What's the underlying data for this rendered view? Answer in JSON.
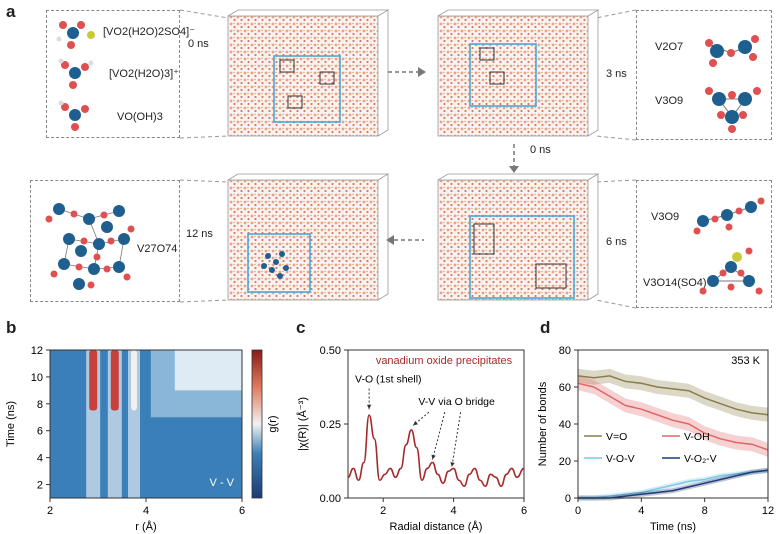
{
  "panels": {
    "a": "a",
    "b": "b",
    "c": "c",
    "d": "d"
  },
  "panel_a": {
    "times": {
      "t0": "0 ns",
      "t3": "3 ns",
      "t0b": "0 ns",
      "t6": "6 ns",
      "t12": "12 ns"
    },
    "species_initial": [
      "[VO2(H2O)2SO4]⁻",
      "[VO2(H2O)3]⁺",
      "VO(OH)3"
    ],
    "species_3ns": [
      "V2O7",
      "V3O9"
    ],
    "species_6ns": [
      "V3O9",
      "V3O14(SO4)"
    ],
    "species_12ns": [
      "V27O74"
    ]
  },
  "chart_data": [
    {
      "type": "heatmap",
      "panel": "b",
      "xlabel": "r (Å)",
      "ylabel": "Time (ns)",
      "colorbar_label": "g(r)",
      "annotation": "V - V",
      "xlim": [
        2,
        6
      ],
      "ylim": [
        1,
        12
      ],
      "xticks": [
        2,
        4,
        6
      ],
      "yticks": [
        2,
        4,
        6,
        8,
        10,
        12
      ],
      "peaks_r": [
        2.9,
        3.35,
        3.75
      ]
    },
    {
      "type": "line",
      "panel": "c",
      "xlabel": "Radial distance (Å)",
      "ylabel": "|χ(R)| (Å⁻³)",
      "xlim": [
        1,
        6
      ],
      "ylim": [
        0,
        0.5
      ],
      "xticks": [
        2,
        4,
        6
      ],
      "yticks": [
        0.0,
        0.25,
        0.5
      ],
      "ytick_labels": [
        "0.00",
        "0.25",
        "0.50"
      ],
      "series": [
        {
          "name": "vanadium oxide precipitates",
          "color": "#a52a2a",
          "x": [
            1.0,
            1.15,
            1.3,
            1.45,
            1.6,
            1.75,
            1.9,
            2.05,
            2.2,
            2.35,
            2.5,
            2.65,
            2.8,
            2.95,
            3.1,
            3.25,
            3.4,
            3.55,
            3.7,
            3.85,
            4.0,
            4.15,
            4.3,
            4.45,
            4.6,
            4.75,
            4.9,
            5.05,
            5.2,
            5.35,
            5.5,
            5.65,
            5.8,
            6.0
          ],
          "y": [
            0.07,
            0.1,
            0.06,
            0.12,
            0.28,
            0.2,
            0.06,
            0.08,
            0.1,
            0.07,
            0.1,
            0.18,
            0.23,
            0.17,
            0.06,
            0.1,
            0.12,
            0.08,
            0.05,
            0.09,
            0.1,
            0.06,
            0.04,
            0.08,
            0.1,
            0.06,
            0.04,
            0.08,
            0.07,
            0.04,
            0.08,
            0.1,
            0.07,
            0.1
          ]
        }
      ],
      "annotations": [
        "V-O (1st shell)",
        "V-V via O bridge"
      ],
      "title": "vanadium oxide precipitates"
    },
    {
      "type": "line",
      "panel": "d",
      "xlabel": "Time (ns)",
      "ylabel": "Number of bonds",
      "annotation": "353 K",
      "xlim": [
        0,
        12
      ],
      "ylim": [
        0,
        80
      ],
      "xticks": [
        0,
        4,
        8,
        12
      ],
      "yticks": [
        0,
        20,
        40,
        60,
        80
      ],
      "series": [
        {
          "name": "V=O",
          "color": "#8b7d4a",
          "x": [
            0,
            1,
            2,
            3,
            4,
            5,
            6,
            7,
            8,
            9,
            10,
            11,
            12
          ],
          "y": [
            66,
            65,
            66,
            63,
            62,
            60,
            59,
            58,
            54,
            51,
            48,
            46,
            45
          ]
        },
        {
          "name": "V-OH",
          "color": "#e06666",
          "x": [
            0,
            1,
            2,
            3,
            4,
            5,
            6,
            7,
            8,
            9,
            10,
            11,
            12
          ],
          "y": [
            62,
            60,
            55,
            50,
            48,
            45,
            42,
            40,
            35,
            32,
            30,
            29,
            26
          ]
        },
        {
          "name": "V-O-V",
          "color": "#7ec8e3",
          "x": [
            0,
            1,
            2,
            3,
            4,
            5,
            6,
            7,
            8,
            9,
            10,
            11,
            12
          ],
          "y": [
            0,
            0,
            1,
            2,
            3,
            5,
            7,
            9,
            10,
            12,
            13,
            14,
            15
          ]
        },
        {
          "name": "V-O₂-V",
          "color": "#1f3b73",
          "x": [
            0,
            1,
            2,
            3,
            4,
            5,
            6,
            7,
            8,
            9,
            10,
            11,
            12
          ],
          "y": [
            0,
            0,
            0,
            1,
            2,
            3,
            4,
            6,
            8,
            10,
            12,
            14,
            15
          ]
        }
      ]
    }
  ]
}
